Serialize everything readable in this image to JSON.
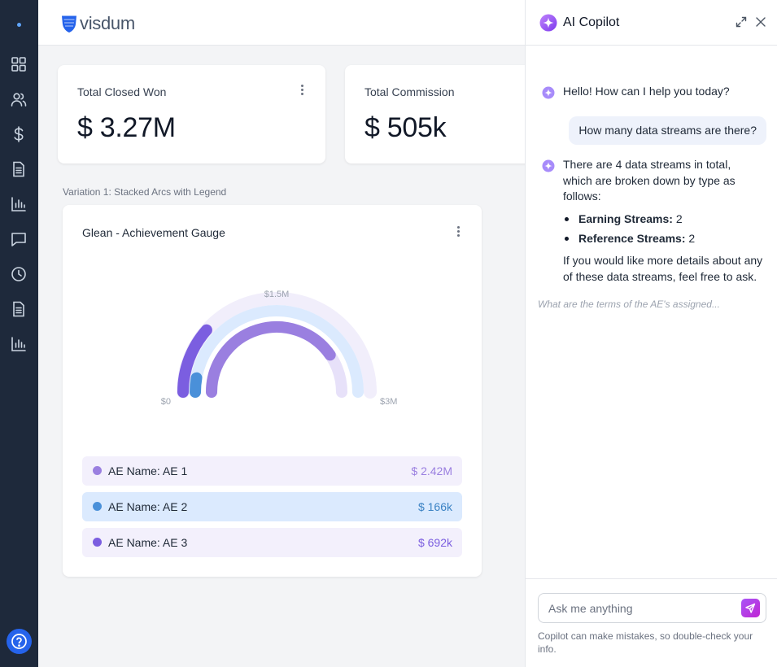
{
  "brand": {
    "name": "visdum"
  },
  "sidebar": {
    "items": [
      {
        "name": "dashboard",
        "icon": "grid-icon"
      },
      {
        "name": "users",
        "icon": "users-icon"
      },
      {
        "name": "commission",
        "icon": "dollar-icon"
      },
      {
        "name": "documents",
        "icon": "document-icon"
      },
      {
        "name": "reports",
        "icon": "bar-chart-icon"
      },
      {
        "name": "messages",
        "icon": "chat-icon"
      },
      {
        "name": "history",
        "icon": "clock-icon"
      },
      {
        "name": "plans",
        "icon": "document-icon"
      },
      {
        "name": "analytics",
        "icon": "bar-chart-icon"
      }
    ],
    "help_icon": "help-icon"
  },
  "kpis": [
    {
      "title": "Total Closed Won",
      "value": "$ 3.27M"
    },
    {
      "title": "Total Commission",
      "value": "$ 505k"
    }
  ],
  "variation_label": "Variation 1: Stacked Arcs with Legend",
  "gauge": {
    "title": "Glean - Achievement Gauge",
    "axis": {
      "min_label": "$0",
      "mid_label": "$1.5M",
      "max_label": "$3M"
    },
    "legend": [
      {
        "name": "AE Name: AE 1",
        "value": "$ 2.42M"
      },
      {
        "name": "AE Name: AE 2",
        "value": "$ 166k"
      },
      {
        "name": "AE Name: AE 3",
        "value": "$ 692k"
      }
    ]
  },
  "chart_data": {
    "type": "gauge",
    "title": "Glean - Achievement Gauge",
    "range": [
      0,
      3000000
    ],
    "tick_labels": [
      "$0",
      "$1.5M",
      "$3M"
    ],
    "series": [
      {
        "name": "AE Name: AE 1",
        "value": 2420000,
        "label": "$ 2.42M",
        "color": "#9a7fe0"
      },
      {
        "name": "AE Name: AE 2",
        "value": 166000,
        "label": "$ 166k",
        "color": "#4a90d9"
      },
      {
        "name": "AE Name: AE 3",
        "value": 692000,
        "label": "$ 692k",
        "color": "#7b5ee0"
      }
    ]
  },
  "copilot": {
    "title": "AI Copilot",
    "greeting": "Hello! How can I help you today?",
    "user_message": "How many data streams are there?",
    "answer_intro": "There are 4 data streams in total, which are broken down by type as follows:",
    "answer_items": [
      {
        "label": "Earning Streams:",
        "value": "2"
      },
      {
        "label": "Reference Streams:",
        "value": "2"
      }
    ],
    "answer_outro": "If you would like more details about any of these data streams, feel free to ask.",
    "suggestion": "What are the terms of the AE's assigned...",
    "input_placeholder": "Ask me anything",
    "disclaimer": "Copilot can make mistakes, so double-check your info."
  },
  "colors": {
    "sidebar_bg": "#1e293b",
    "accent_blue": "#2563eb",
    "ae1": "#9a7fe0",
    "ae2": "#4a90d9",
    "ae3": "#7b5ee0"
  }
}
